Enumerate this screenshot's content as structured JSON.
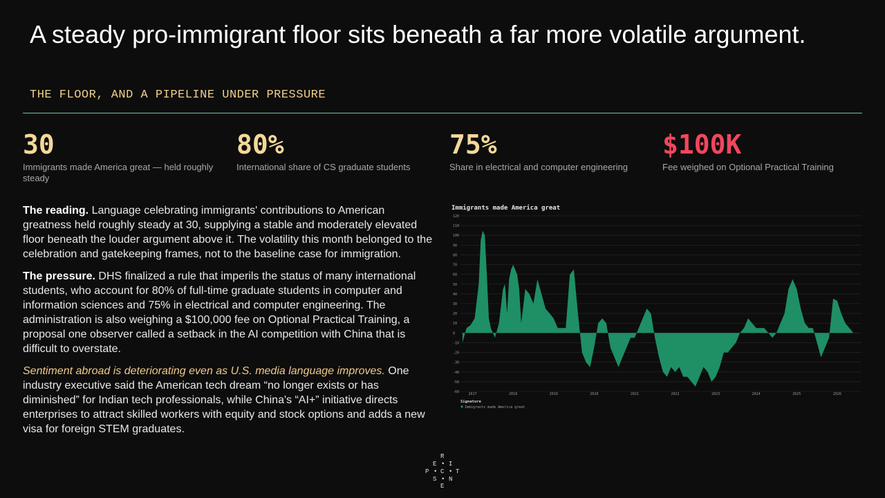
{
  "header": {
    "title": "A steady pro-immigrant floor sits beneath a far more volatile argument.",
    "subtitle": "THE FLOOR, AND A PIPELINE UNDER PRESSURE"
  },
  "stats": [
    {
      "value": "30",
      "label": "Immigrants made America great — held roughly steady"
    },
    {
      "value": "80%",
      "label": "International share of CS graduate students"
    },
    {
      "value": "75%",
      "label": "Share in electrical and computer engineering"
    },
    {
      "value": "$100K",
      "label": "Fee weighed on Optional Practical Training"
    }
  ],
  "body": {
    "p1_lead": "The reading.",
    "p1_text": " Language celebrating immigrants' contributions to American greatness held roughly steady at 30, supplying a stable and moderately elevated floor beneath the louder argument above it. The volatility this month belonged to the celebration and gatekeeping frames, not to the baseline case for immigration.",
    "p2_lead": "The pressure.",
    "p2_text": " DHS finalized a rule that imperils the status of many international students, who account for 80% of full-time graduate students in computer and information sciences and 75% in electrical and computer engineering. The administration is also weighing a $100,000 fee on Optional Practical Training, a proposal one observer called a setback in the AI competition with China that is difficult to overstate.",
    "p3_lead": "Sentiment abroad is deteriorating even as U.S. media language improves.",
    "p3_text": " One industry executive said the American tech dream “no longer exists or has diminished” for Indian tech professionals, while China's “AI+” initiative directs enterprises to attract skilled workers with equity and stock options and adds a new visa for foreign STEM graduates."
  },
  "logo": {
    "letters": [
      "R",
      "E",
      "I",
      "P",
      "C",
      "T",
      "S",
      "N",
      "E"
    ],
    "dots": [
      "•",
      "•",
      "•",
      "•"
    ]
  },
  "colors": {
    "accent": "#f5d89a",
    "alert": "#f0475e",
    "series": "#1f8f66",
    "rule": "#6fc6a6"
  },
  "chart_data": {
    "type": "area",
    "title": "Immigrants made America great",
    "legend_title": "Signature",
    "series": [
      {
        "name": "Immigrants made America great",
        "x": [
          2016.75,
          2016.85,
          2016.95,
          2017.05,
          2017.15,
          2017.2,
          2017.25,
          2017.3,
          2017.35,
          2017.4,
          2017.45,
          2017.55,
          2017.65,
          2017.75,
          2017.8,
          2017.85,
          2017.9,
          2017.95,
          2018.0,
          2018.05,
          2018.1,
          2018.15,
          2018.2,
          2018.3,
          2018.4,
          2018.5,
          2018.6,
          2018.7,
          2018.8,
          2018.9,
          2019.0,
          2019.1,
          2019.2,
          2019.3,
          2019.4,
          2019.5,
          2019.6,
          2019.7,
          2019.8,
          2019.9,
          2020.0,
          2020.1,
          2020.2,
          2020.3,
          2020.4,
          2020.5,
          2020.6,
          2020.7,
          2020.8,
          2020.9,
          2021.0,
          2021.1,
          2021.2,
          2021.3,
          2021.4,
          2021.5,
          2021.6,
          2021.7,
          2021.8,
          2021.9,
          2022.0,
          2022.1,
          2022.2,
          2022.3,
          2022.4,
          2022.5,
          2022.6,
          2022.7,
          2022.8,
          2022.9,
          2023.0,
          2023.1,
          2023.2,
          2023.3,
          2023.4,
          2023.5,
          2023.6,
          2023.7,
          2023.8,
          2023.9,
          2024.0,
          2024.1,
          2024.2,
          2024.3,
          2024.4,
          2024.5,
          2024.6,
          2024.7,
          2024.8,
          2024.9,
          2025.0,
          2025.1,
          2025.2,
          2025.3,
          2025.4,
          2025.5,
          2025.6,
          2025.7,
          2025.8,
          2025.9,
          2026.0,
          2026.1,
          2026.2,
          2026.3,
          2026.4,
          2026.5
        ],
        "values": [
          -10,
          5,
          8,
          15,
          50,
          95,
          105,
          100,
          60,
          15,
          5,
          -5,
          10,
          45,
          50,
          20,
          55,
          65,
          70,
          65,
          60,
          45,
          10,
          45,
          40,
          30,
          55,
          40,
          25,
          20,
          15,
          5,
          5,
          5,
          60,
          65,
          20,
          -20,
          -30,
          -35,
          -15,
          10,
          15,
          10,
          -15,
          -25,
          -35,
          -25,
          -15,
          -5,
          -5,
          5,
          15,
          25,
          20,
          -5,
          -25,
          -40,
          -45,
          -35,
          -40,
          -35,
          -45,
          -45,
          -50,
          -55,
          -45,
          -35,
          -40,
          -50,
          -45,
          -35,
          -20,
          -20,
          -15,
          -10,
          0,
          5,
          15,
          10,
          5,
          5,
          5,
          0,
          -5,
          0,
          10,
          20,
          45,
          55,
          45,
          25,
          10,
          5,
          5,
          -10,
          -25,
          -15,
          -5,
          35,
          33,
          20,
          10,
          5,
          0,
          0
        ],
        "color": "#1f8f66"
      }
    ],
    "x_ticks": [
      "2017",
      "2018",
      "2019",
      "2020",
      "2021",
      "2022",
      "2023",
      "2024",
      "2025",
      "2026"
    ],
    "y_ticks": [
      "120",
      "110",
      "100",
      "90",
      "80",
      "70",
      "60",
      "50",
      "40",
      "30",
      "20",
      "10",
      "0",
      "-10",
      "-20",
      "-30",
      "-40",
      "-50",
      "-60"
    ],
    "ylim": [
      -60,
      120
    ],
    "xlim": [
      2016.7,
      2026.6
    ],
    "grid": true,
    "legend_position": "bottom-left"
  }
}
